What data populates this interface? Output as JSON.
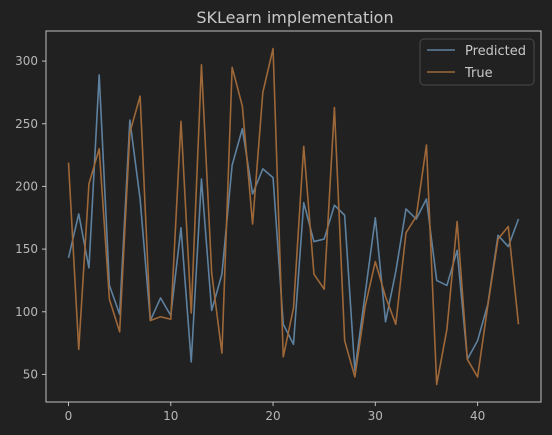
{
  "chart_data": {
    "type": "line",
    "title": "SKLearn implementation",
    "xlabel": "",
    "ylabel": "",
    "xlim": [
      -2.2,
      46.2
    ],
    "ylim": [
      28,
      324
    ],
    "xticks": [
      0,
      10,
      20,
      30,
      40
    ],
    "yticks": [
      50,
      100,
      150,
      200,
      250,
      300
    ],
    "grid": false,
    "legend_position": "top-right",
    "x": [
      0,
      1,
      2,
      3,
      4,
      5,
      6,
      7,
      8,
      9,
      10,
      11,
      12,
      13,
      14,
      15,
      16,
      17,
      18,
      19,
      20,
      21,
      22,
      23,
      24,
      25,
      26,
      27,
      28,
      29,
      30,
      31,
      32,
      33,
      34,
      35,
      36,
      37,
      38,
      39,
      40,
      41,
      42,
      43,
      44
    ],
    "series": [
      {
        "name": "Predicted",
        "color": "#5e819f",
        "values": [
          143,
          178,
          135,
          289,
          121,
          98,
          253,
          190,
          93,
          111,
          97,
          167,
          60,
          206,
          101,
          130,
          217,
          246,
          194,
          214,
          207,
          90,
          74,
          187,
          156,
          158,
          185,
          177,
          53,
          114,
          175,
          92,
          132,
          182,
          174,
          190,
          125,
          121,
          149,
          62,
          77,
          106,
          161,
          152,
          174
        ]
      },
      {
        "name": "True",
        "color": "#9e6839",
        "values": [
          219,
          70,
          202,
          230,
          110,
          84,
          243,
          272,
          93,
          96,
          94,
          252,
          99,
          297,
          131,
          67,
          295,
          264,
          170,
          275,
          310,
          64,
          103,
          232,
          130,
          118,
          263,
          77,
          48,
          104,
          140,
          112,
          90,
          163,
          176,
          233,
          42,
          86,
          172,
          62,
          48,
          105,
          158,
          168,
          90
        ]
      }
    ]
  }
}
